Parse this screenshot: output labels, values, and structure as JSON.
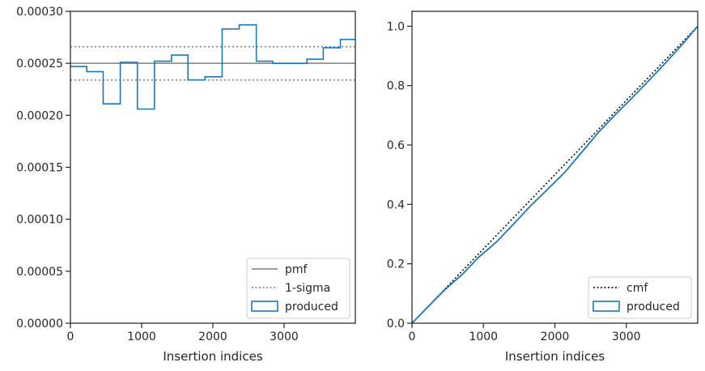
{
  "chart_data": [
    {
      "type": "step",
      "xlabel": "Insertion indices",
      "ylabel": "",
      "xlim": [
        0,
        4000
      ],
      "ylim": [
        0,
        0.0003
      ],
      "xticks": [
        0,
        1000,
        2000,
        3000
      ],
      "yticks": [
        0.0,
        5e-05,
        0.0001,
        0.00015,
        0.0002,
        0.00025,
        0.0003
      ],
      "ytick_labels": [
        "0.00000",
        "0.00005",
        "0.00010",
        "0.00015",
        "0.00020",
        "0.00025",
        "0.00030"
      ],
      "xtick_labels": [
        "0",
        "1000",
        "2000",
        "3000"
      ],
      "grid": false,
      "legend_position": "lower-right",
      "reference_lines": [
        {
          "name": "pmf",
          "style": "solid",
          "color": "#7f7f7f",
          "y": 0.00025
        },
        {
          "name": "1-sigma",
          "style": "dotted",
          "color": "#7f7f7f",
          "y": [
            0.000234,
            0.000266
          ]
        }
      ],
      "series": [
        {
          "name": "produced",
          "color": "#1f77b4",
          "bin_edges": [
            0,
            230,
            460,
            700,
            940,
            1180,
            1420,
            1650,
            1890,
            2130,
            2370,
            2610,
            2840,
            3080,
            3320,
            3550,
            3790,
            4000
          ],
          "values": [
            0.000247,
            0.000242,
            0.000211,
            0.000251,
            0.000206,
            0.000252,
            0.000258,
            0.000234,
            0.000237,
            0.000283,
            0.000287,
            0.000252,
            0.00025,
            0.00025,
            0.000254,
            0.000265,
            0.000273
          ]
        }
      ]
    },
    {
      "type": "line",
      "xlabel": "Insertion indices",
      "ylabel": "",
      "xlim": [
        0,
        4000
      ],
      "ylim": [
        0,
        1.05
      ],
      "xticks": [
        0,
        1000,
        2000,
        3000
      ],
      "yticks": [
        0.0,
        0.2,
        0.4,
        0.6,
        0.8,
        1.0
      ],
      "ytick_labels": [
        "0.0",
        "0.2",
        "0.4",
        "0.6",
        "0.8",
        "1.0"
      ],
      "xtick_labels": [
        "0",
        "1000",
        "2000",
        "3000"
      ],
      "grid": false,
      "legend_position": "lower-right",
      "series": [
        {
          "name": "cmf",
          "style": "dotted",
          "color": "#000000",
          "x": [
            0,
            4000
          ],
          "y": [
            0,
            1.0
          ]
        },
        {
          "name": "produced",
          "style": "solid",
          "color": "#1f77b4",
          "x": [
            0,
            230,
            460,
            700,
            940,
            1180,
            1420,
            1650,
            1890,
            2130,
            2370,
            2610,
            2840,
            3080,
            3320,
            3550,
            3790,
            4000
          ],
          "y": [
            0,
            0.0568,
            0.1126,
            0.1632,
            0.2235,
            0.2729,
            0.3334,
            0.3927,
            0.4489,
            0.5058,
            0.5737,
            0.6426,
            0.7006,
            0.7581,
            0.8181,
            0.8765,
            0.9401,
            1.0
          ]
        }
      ]
    }
  ]
}
